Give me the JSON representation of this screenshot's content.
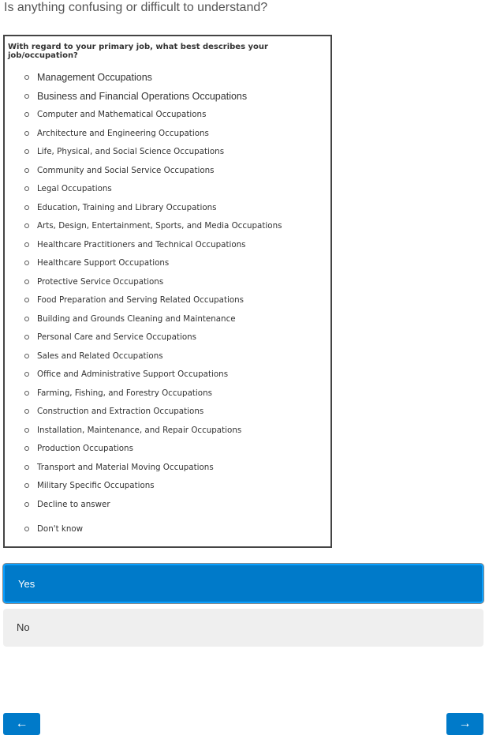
{
  "question": "Is anything confusing or difficult to understand?",
  "preview": {
    "title": "With regard to your primary job, what best describes your job/occupation?",
    "options": [
      "Management Occupations",
      "Business and Financial Operations Occupations",
      "Computer and Mathematical Occupations",
      "Architecture and Engineering Occupations",
      "Life, Physical, and Social Science Occupations",
      "Community and Social Service Occupations",
      "Legal Occupations",
      "Education, Training and Library Occupations",
      "Arts, Design, Entertainment, Sports, and Media Occupations",
      "Healthcare Practitioners and Technical Occupations",
      "Healthcare Support Occupations",
      "Protective Service Occupations",
      "Food Preparation and Serving Related Occupations",
      "Building and Grounds Cleaning and Maintenance",
      "Personal Care and Service Occupations",
      "Sales and Related Occupations",
      "Office and Administrative Support Occupations",
      "Farming, Fishing, and Forestry Occupations",
      "Construction and Extraction Occupations",
      "Installation, Maintenance, and Repair Occupations",
      "Production Occupations",
      "Transport and Material Moving Occupations",
      "Military Specific Occupations",
      "Decline to answer",
      "Don't know"
    ]
  },
  "answers": {
    "yes": "Yes",
    "no": "No",
    "selected": "Yes"
  },
  "nav": {
    "back": "←",
    "next": "→"
  },
  "colors": {
    "accent": "#007ac9",
    "unselected": "#efefef"
  }
}
